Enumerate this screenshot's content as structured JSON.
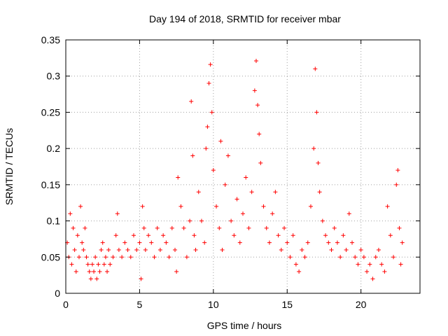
{
  "chart_data": {
    "type": "scatter",
    "title": "Day 194 of 2018, SRMTID for receiver mbar",
    "xlabel": "GPS time / hours",
    "ylabel": "SRMTID / TECUs",
    "xlim": [
      0,
      24
    ],
    "ylim": [
      0,
      0.35
    ],
    "xticks": [
      0,
      5,
      10,
      15,
      20
    ],
    "xtick_labels": [
      "0",
      "5",
      "10",
      "15",
      "20"
    ],
    "yticks": [
      0,
      0.05,
      0.1,
      0.15,
      0.2,
      0.25,
      0.3,
      0.35
    ],
    "ytick_labels": [
      "0",
      "0.05",
      "0.1",
      "0.15",
      "0.2",
      "0.25",
      "0.3",
      "0.35"
    ],
    "grid": true,
    "marker": "plus",
    "series": [
      {
        "name": "SRMTID",
        "color": "#ff0000",
        "points": [
          [
            0.1,
            0.07
          ],
          [
            0.2,
            0.05
          ],
          [
            0.3,
            0.11
          ],
          [
            0.4,
            0.04
          ],
          [
            0.5,
            0.09
          ],
          [
            0.6,
            0.06
          ],
          [
            0.7,
            0.03
          ],
          [
            0.8,
            0.08
          ],
          [
            0.9,
            0.05
          ],
          [
            1.0,
            0.12
          ],
          [
            1.1,
            0.07
          ],
          [
            1.2,
            0.06
          ],
          [
            1.3,
            0.09
          ],
          [
            1.4,
            0.05
          ],
          [
            1.5,
            0.04
          ],
          [
            1.6,
            0.03
          ],
          [
            1.7,
            0.02
          ],
          [
            1.8,
            0.04
          ],
          [
            1.9,
            0.03
          ],
          [
            2.0,
            0.05
          ],
          [
            2.1,
            0.02
          ],
          [
            2.2,
            0.04
          ],
          [
            2.3,
            0.03
          ],
          [
            2.4,
            0.06
          ],
          [
            2.5,
            0.07
          ],
          [
            2.6,
            0.04
          ],
          [
            2.7,
            0.05
          ],
          [
            2.8,
            0.03
          ],
          [
            2.9,
            0.06
          ],
          [
            3.0,
            0.04
          ],
          [
            3.2,
            0.05
          ],
          [
            3.4,
            0.08
          ],
          [
            3.5,
            0.11
          ],
          [
            3.6,
            0.06
          ],
          [
            3.8,
            0.05
          ],
          [
            4.0,
            0.07
          ],
          [
            4.2,
            0.06
          ],
          [
            4.4,
            0.05
          ],
          [
            4.6,
            0.08
          ],
          [
            4.8,
            0.06
          ],
          [
            5.0,
            0.07
          ],
          [
            5.1,
            0.02
          ],
          [
            5.2,
            0.12
          ],
          [
            5.3,
            0.09
          ],
          [
            5.4,
            0.06
          ],
          [
            5.6,
            0.08
          ],
          [
            5.8,
            0.07
          ],
          [
            6.0,
            0.05
          ],
          [
            6.2,
            0.09
          ],
          [
            6.4,
            0.06
          ],
          [
            6.6,
            0.08
          ],
          [
            6.8,
            0.07
          ],
          [
            7.0,
            0.05
          ],
          [
            7.2,
            0.09
          ],
          [
            7.4,
            0.06
          ],
          [
            7.5,
            0.03
          ],
          [
            7.6,
            0.16
          ],
          [
            7.8,
            0.12
          ],
          [
            8.0,
            0.09
          ],
          [
            8.2,
            0.05
          ],
          [
            8.4,
            0.1
          ],
          [
            8.5,
            0.265
          ],
          [
            8.6,
            0.19
          ],
          [
            8.7,
            0.08
          ],
          [
            8.8,
            0.06
          ],
          [
            9.0,
            0.14
          ],
          [
            9.2,
            0.1
          ],
          [
            9.4,
            0.07
          ],
          [
            9.5,
            0.2
          ],
          [
            9.6,
            0.23
          ],
          [
            9.7,
            0.29
          ],
          [
            9.8,
            0.316
          ],
          [
            9.9,
            0.25
          ],
          [
            10.0,
            0.17
          ],
          [
            10.2,
            0.12
          ],
          [
            10.4,
            0.09
          ],
          [
            10.5,
            0.21
          ],
          [
            10.6,
            0.06
          ],
          [
            10.8,
            0.15
          ],
          [
            11.0,
            0.19
          ],
          [
            11.2,
            0.1
          ],
          [
            11.4,
            0.08
          ],
          [
            11.6,
            0.13
          ],
          [
            11.8,
            0.07
          ],
          [
            12.0,
            0.11
          ],
          [
            12.2,
            0.16
          ],
          [
            12.4,
            0.09
          ],
          [
            12.6,
            0.14
          ],
          [
            12.8,
            0.28
          ],
          [
            12.9,
            0.321
          ],
          [
            13.0,
            0.26
          ],
          [
            13.1,
            0.22
          ],
          [
            13.2,
            0.18
          ],
          [
            13.4,
            0.12
          ],
          [
            13.6,
            0.09
          ],
          [
            13.8,
            0.07
          ],
          [
            14.0,
            0.11
          ],
          [
            14.2,
            0.14
          ],
          [
            14.4,
            0.08
          ],
          [
            14.6,
            0.06
          ],
          [
            14.8,
            0.09
          ],
          [
            15.0,
            0.07
          ],
          [
            15.2,
            0.05
          ],
          [
            15.4,
            0.08
          ],
          [
            15.6,
            0.04
          ],
          [
            15.8,
            0.03
          ],
          [
            16.0,
            0.06
          ],
          [
            16.2,
            0.05
          ],
          [
            16.4,
            0.07
          ],
          [
            16.6,
            0.12
          ],
          [
            16.8,
            0.2
          ],
          [
            16.9,
            0.31
          ],
          [
            17.0,
            0.25
          ],
          [
            17.1,
            0.18
          ],
          [
            17.2,
            0.14
          ],
          [
            17.4,
            0.1
          ],
          [
            17.6,
            0.08
          ],
          [
            17.8,
            0.07
          ],
          [
            18.0,
            0.06
          ],
          [
            18.2,
            0.09
          ],
          [
            18.4,
            0.07
          ],
          [
            18.6,
            0.05
          ],
          [
            18.8,
            0.08
          ],
          [
            19.0,
            0.06
          ],
          [
            19.2,
            0.11
          ],
          [
            19.4,
            0.07
          ],
          [
            19.6,
            0.05
          ],
          [
            19.8,
            0.04
          ],
          [
            20.0,
            0.06
          ],
          [
            20.2,
            0.05
          ],
          [
            20.4,
            0.03
          ],
          [
            20.6,
            0.04
          ],
          [
            20.8,
            0.02
          ],
          [
            21.0,
            0.05
          ],
          [
            21.2,
            0.06
          ],
          [
            21.4,
            0.04
          ],
          [
            21.6,
            0.03
          ],
          [
            21.8,
            0.12
          ],
          [
            22.0,
            0.08
          ],
          [
            22.2,
            0.05
          ],
          [
            22.4,
            0.15
          ],
          [
            22.5,
            0.17
          ],
          [
            22.6,
            0.09
          ],
          [
            22.7,
            0.04
          ],
          [
            22.8,
            0.07
          ]
        ]
      }
    ]
  }
}
